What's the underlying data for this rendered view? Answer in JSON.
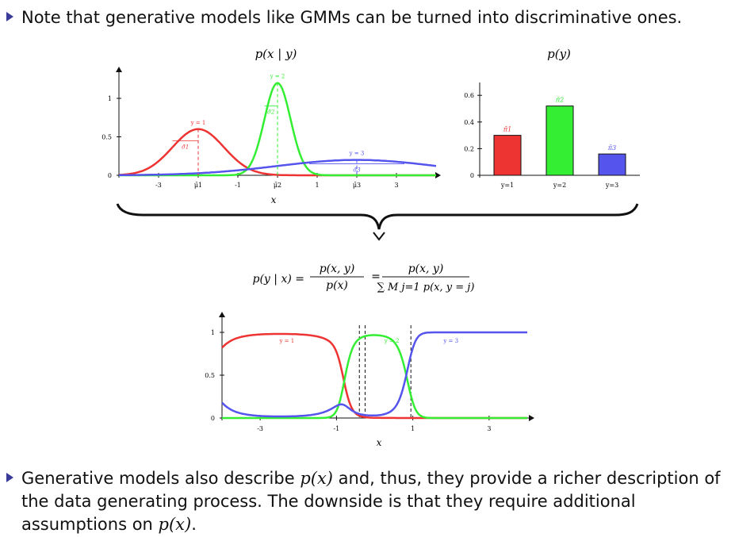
{
  "bullets": {
    "b1": "Note that generative models like GMMs can be turned into discriminative ones.",
    "b2_pre": "Generative models also describe ",
    "b2_math1": "p(x)",
    "b2_mid": " and, thus, they provide a richer description of the data generating process. The downside is that they require additional assumptions on ",
    "b2_math2": "p(x)",
    "b2_post": "."
  },
  "colors": {
    "class1": "#ee3333",
    "class2": "#33ee33",
    "class3": "#5555ee",
    "bullet": "#3a3a9a"
  },
  "icons": {
    "bullet": "triangle-bullet-icon",
    "brace": "curly-brace-down-icon"
  },
  "formula": {
    "lhs": "p(y | x) =",
    "num1": "p(x, y)",
    "den1": "p(x)",
    "eq": "=",
    "num2": "p(x, y)",
    "den2": "∑ M j=1 p(x, y = j)"
  },
  "chart_data": [
    {
      "type": "line",
      "title": "p(x | y)",
      "xlabel": "x",
      "ylabel": "",
      "xlim": [
        -4,
        4
      ],
      "ylim": [
        0,
        1.2
      ],
      "xticks": [
        "-3",
        "μ̄1",
        "-1",
        "μ̄2",
        "1",
        "μ̄3",
        "3"
      ],
      "xtick_values": [
        -3,
        -2,
        -1,
        0,
        1,
        2,
        3
      ],
      "yticks": [
        "0",
        "0.5",
        "1"
      ],
      "ytick_values": [
        0,
        0.5,
        1
      ],
      "series": [
        {
          "name": "y = 1",
          "mu": -2,
          "sigma": 0.65,
          "scale": 0.6,
          "param_label": "σ̄1"
        },
        {
          "name": "y = 2",
          "mu": 0,
          "sigma": 0.33,
          "scale": 1.2,
          "param_label": "σ̄2"
        },
        {
          "name": "y = 3",
          "mu": 2,
          "sigma": 2.0,
          "scale": 0.2,
          "param_label": "σ̄3"
        }
      ],
      "means_marked": [
        "μ̄1",
        "μ̄2",
        "μ̄3"
      ]
    },
    {
      "type": "bar",
      "title": "p(y)",
      "categories": [
        "y=1",
        "y=2",
        "y=3"
      ],
      "values": [
        0.3,
        0.52,
        0.16
      ],
      "value_labels": [
        "π̄1",
        "π̄2",
        "π̄3"
      ],
      "ylim": [
        0,
        0.7
      ],
      "yticks": [
        "0",
        "0.2",
        "0.4",
        "0.6"
      ],
      "ytick_values": [
        0,
        0.2,
        0.4,
        0.6
      ]
    },
    {
      "type": "line",
      "title": "",
      "xlabel": "x",
      "ylabel": "",
      "xlim": [
        -4,
        4
      ],
      "ylim": [
        0,
        1.05
      ],
      "xticks": [
        "-3",
        "-1",
        "1",
        "3"
      ],
      "xtick_values": [
        -3,
        -1,
        1,
        3
      ],
      "yticks": [
        "0",
        "0.5",
        "1"
      ],
      "ytick_values": [
        0,
        0.5,
        1
      ],
      "series": [
        {
          "name": "y = 1",
          "label_x": -2.3
        },
        {
          "name": "y = 2",
          "label_x": 0.45
        },
        {
          "name": "y = 3",
          "label_x": 2.0
        }
      ],
      "vlines": [
        -0.4,
        -0.25,
        0.95
      ]
    }
  ]
}
